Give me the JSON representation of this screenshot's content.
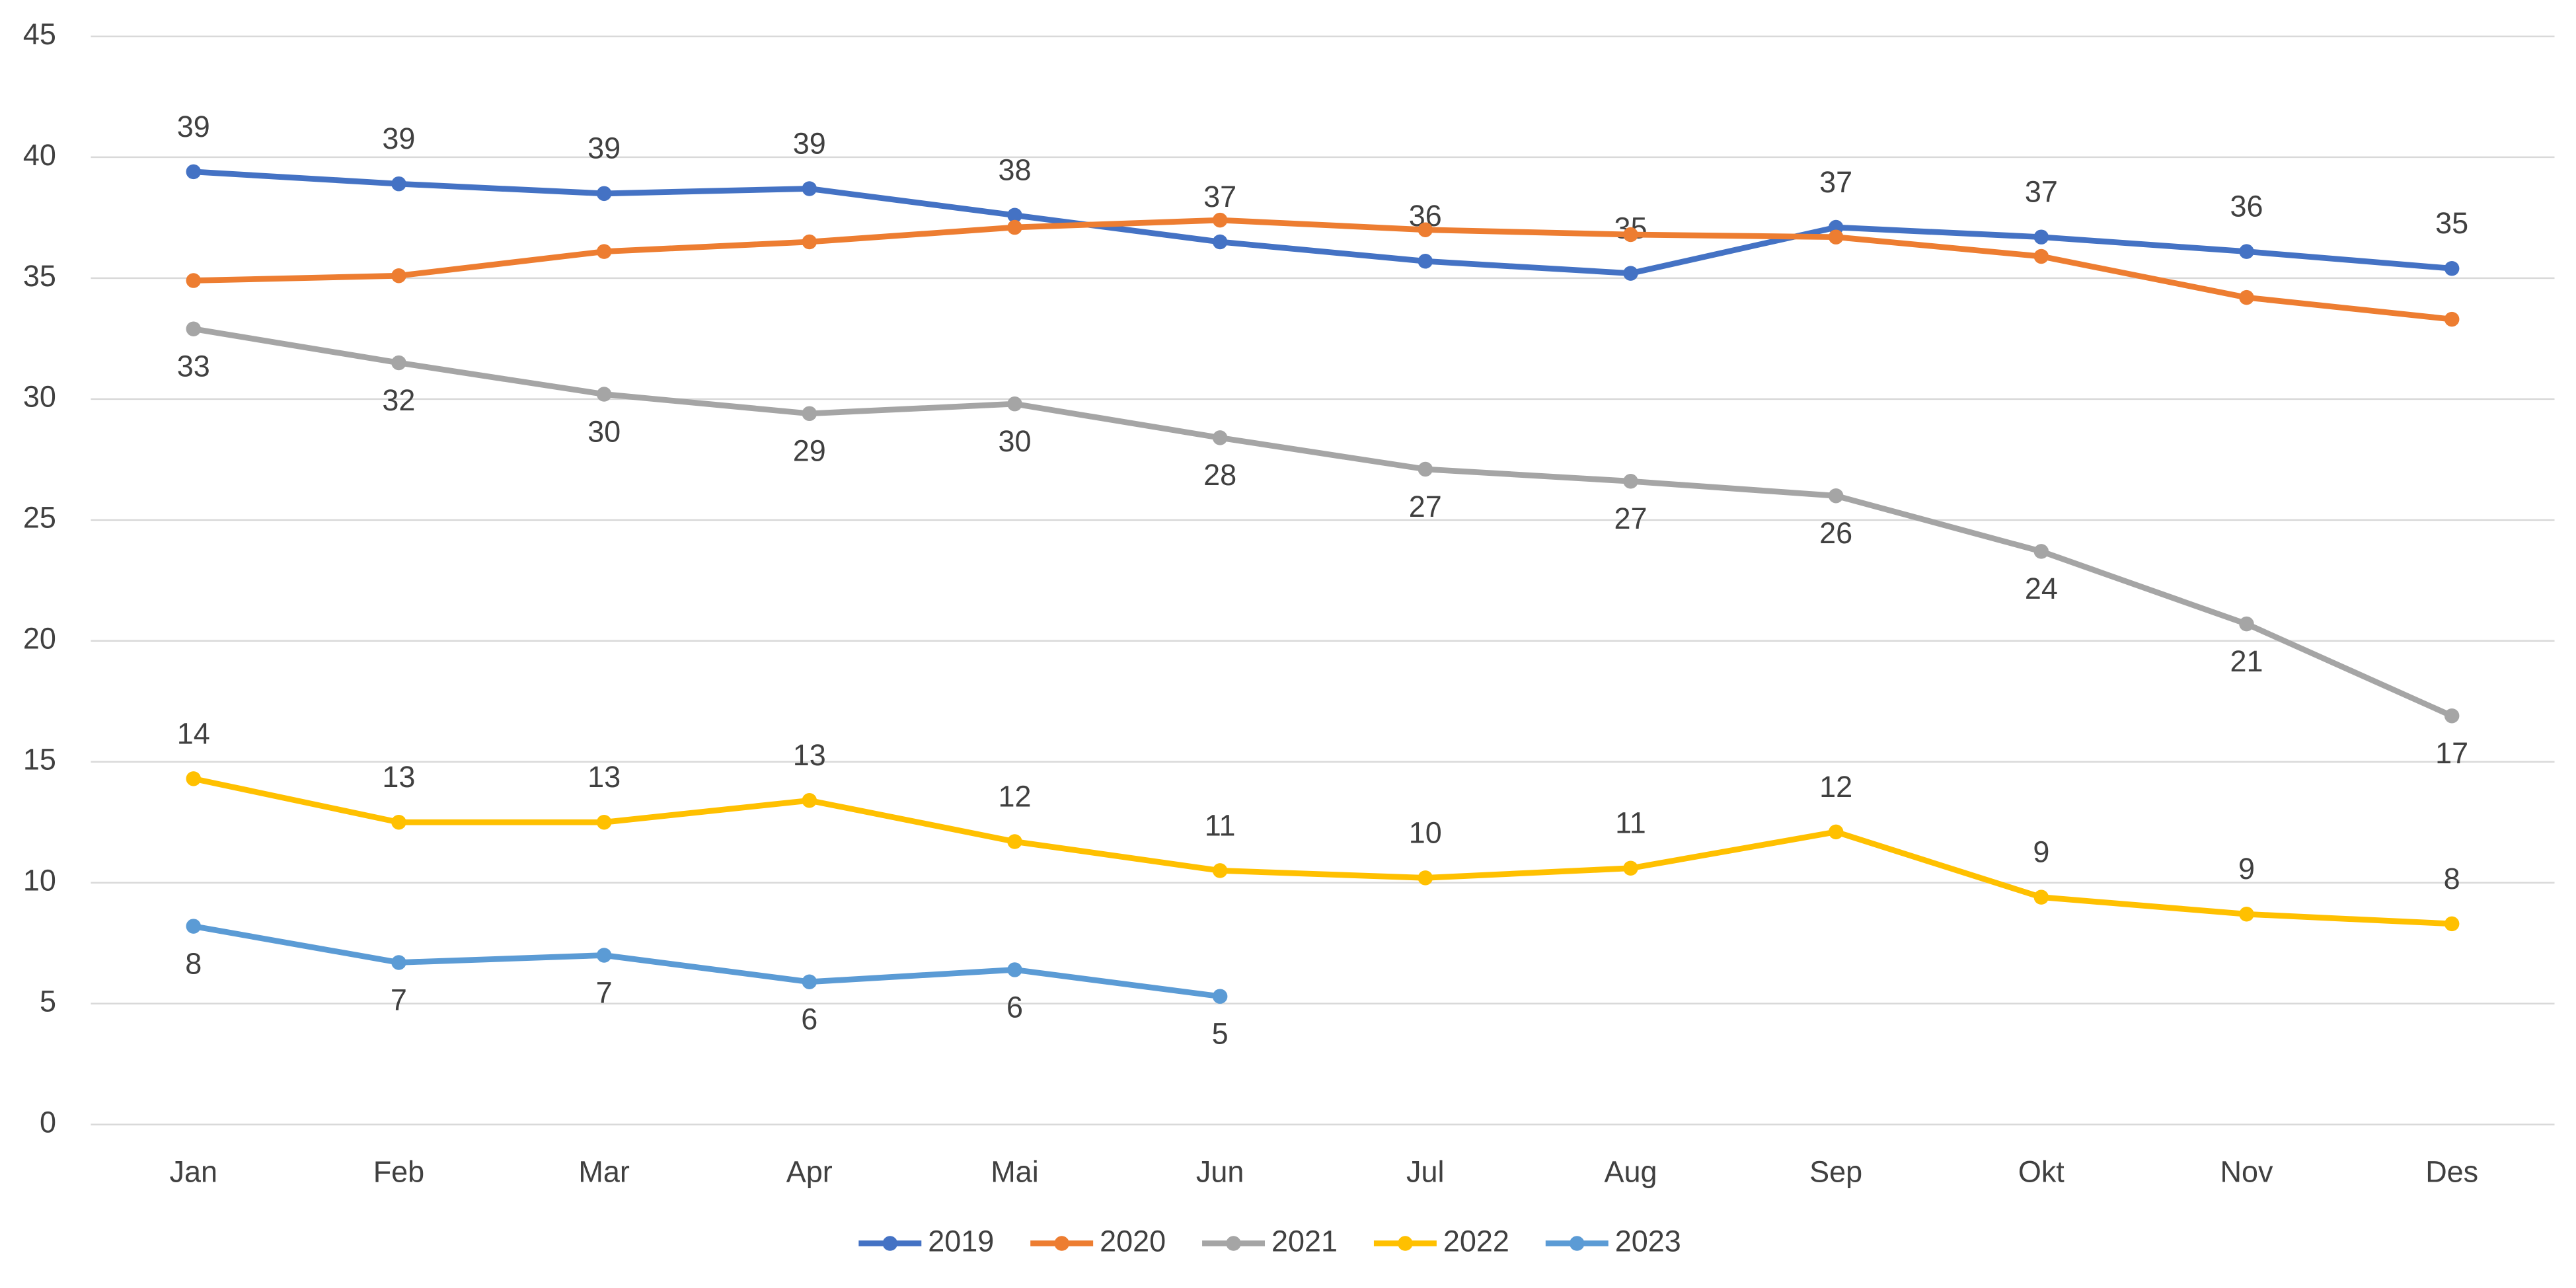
{
  "chart_data": {
    "type": "line",
    "categories": [
      "Jan",
      "Feb",
      "Mar",
      "Apr",
      "Mai",
      "Jun",
      "Jul",
      "Aug",
      "Sep",
      "Okt",
      "Nov",
      "Des"
    ],
    "ylim": [
      0,
      45
    ],
    "yticks": [
      0,
      5,
      10,
      15,
      20,
      25,
      30,
      35,
      40,
      45
    ],
    "grid": true,
    "legend": "bottom",
    "series": [
      {
        "name": "2019",
        "color": "#4472c4",
        "label_position": "above",
        "values": [
          39.4,
          38.9,
          38.5,
          38.7,
          37.6,
          36.5,
          35.7,
          35.2,
          37.1,
          36.7,
          36.1,
          35.4
        ],
        "value_labels": [
          "39",
          "39",
          "39",
          "39",
          "38",
          "37",
          "36",
          "35",
          "37",
          "37",
          "36",
          "35"
        ]
      },
      {
        "name": "2020",
        "color": "#ed7d31",
        "values": [
          34.9,
          35.1,
          36.1,
          36.5,
          37.1,
          37.4,
          37.0,
          36.8,
          36.7,
          35.9,
          34.2,
          33.3
        ]
      },
      {
        "name": "2021",
        "color": "#a5a5a5",
        "label_position": "below",
        "values": [
          32.9,
          31.5,
          30.2,
          29.4,
          29.8,
          28.4,
          27.1,
          26.6,
          26.0,
          23.7,
          20.7,
          16.9
        ],
        "value_labels": [
          "33",
          "32",
          "30",
          "29",
          "30",
          "28",
          "27",
          "27",
          "26",
          "24",
          "21",
          "17"
        ]
      },
      {
        "name": "2022",
        "color": "#ffc000",
        "label_position": "above",
        "values": [
          14.3,
          12.5,
          12.5,
          13.4,
          11.7,
          10.5,
          10.2,
          10.6,
          12.1,
          9.4,
          8.7,
          8.3
        ],
        "value_labels": [
          "14",
          "13",
          "13",
          "13",
          "12",
          "11",
          "10",
          "11",
          "12",
          "9",
          "9",
          "8"
        ]
      },
      {
        "name": "2023",
        "color": "#5b9bd5",
        "label_position": "below",
        "values": [
          8.2,
          6.7,
          7.0,
          5.9,
          6.4,
          5.3,
          null,
          null,
          null,
          null,
          null,
          null
        ],
        "value_labels": [
          "8",
          "7",
          "7",
          "6",
          "6",
          "5",
          null,
          null,
          null,
          null,
          null,
          null
        ]
      }
    ]
  }
}
